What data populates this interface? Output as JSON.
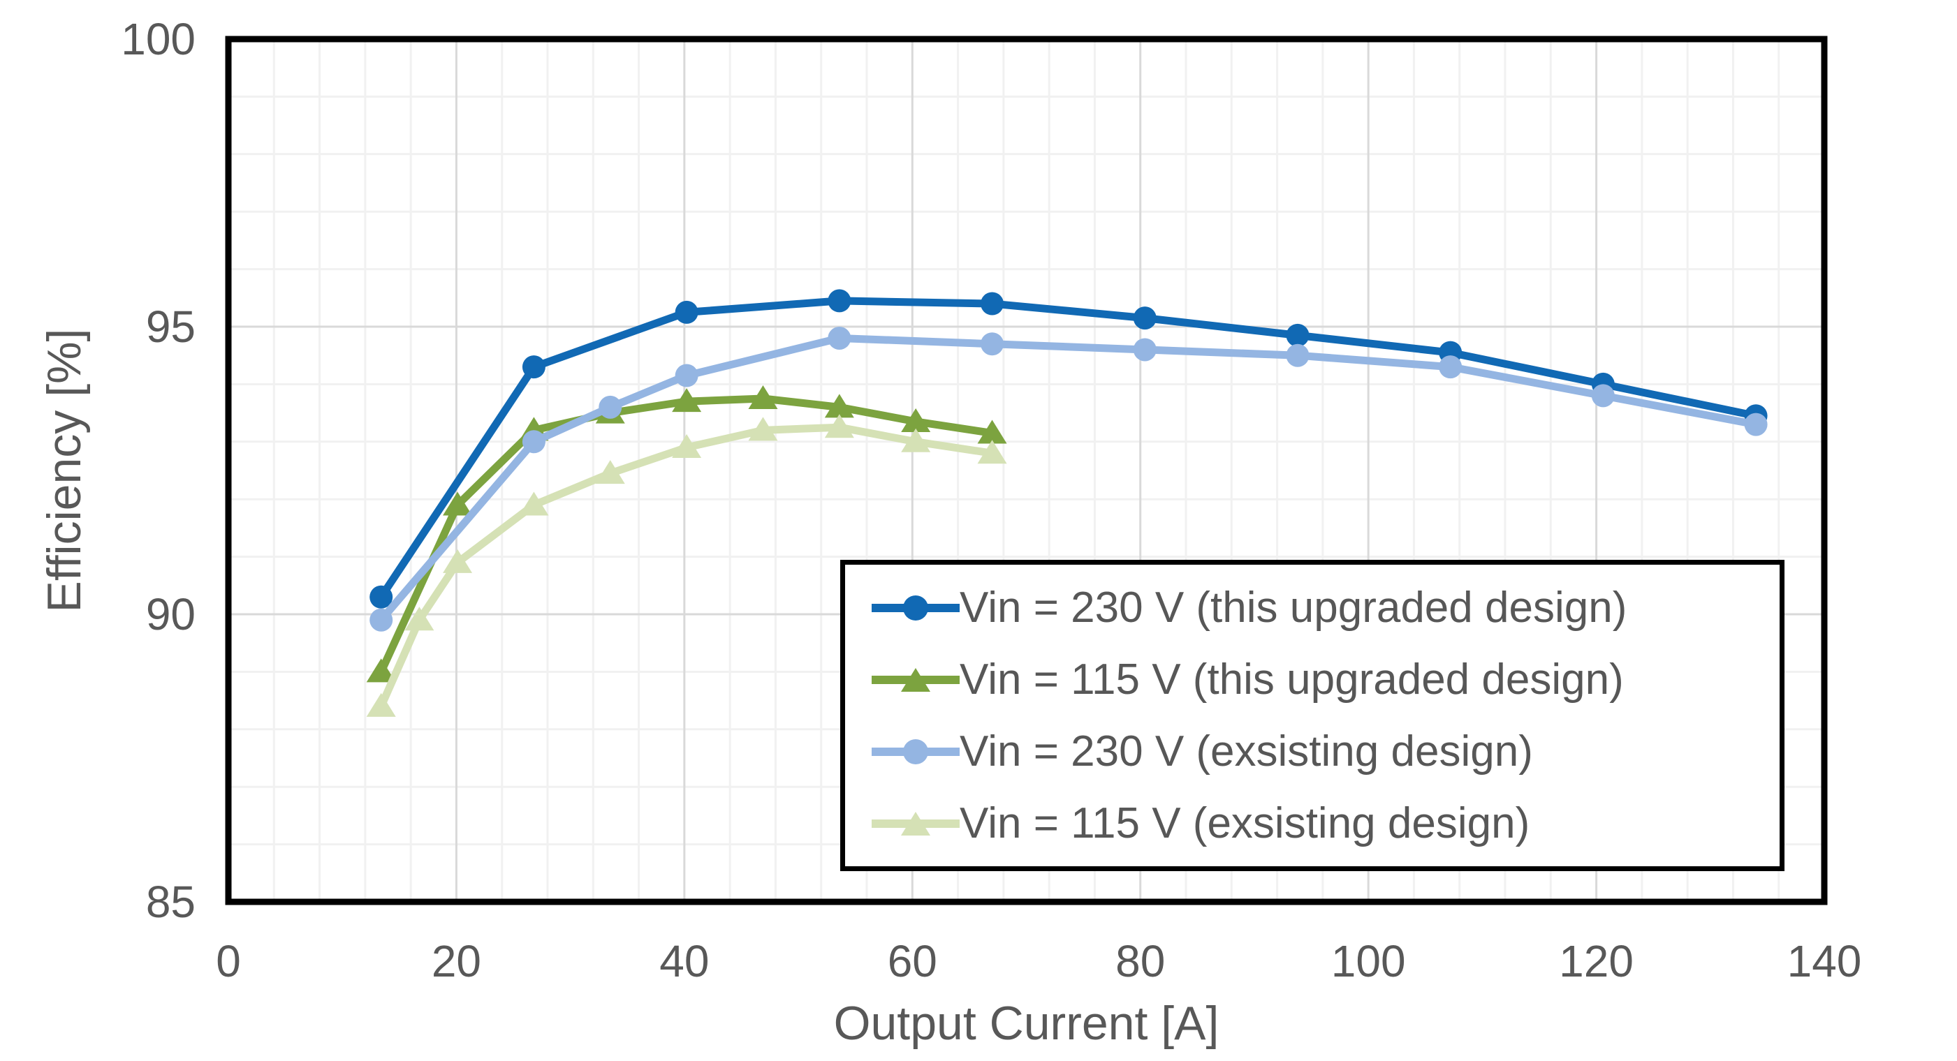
{
  "chart_data": {
    "type": "line",
    "title": "",
    "xlabel": "Output Current [A]",
    "ylabel": "Efficiency [%]",
    "xlim": [
      0,
      140
    ],
    "ylim": [
      85,
      100
    ],
    "x_major_unit": 20,
    "x_minor_unit": 4,
    "y_major_unit": 5,
    "y_minor_unit": 1,
    "x_ticks": [
      0,
      20,
      40,
      60,
      80,
      100,
      120,
      140
    ],
    "y_ticks": [
      85,
      90,
      95,
      100
    ],
    "grid": "major and minor gridlines shown",
    "legend_position": "inside lower right, black framed box",
    "style": {
      "background": "#ffffff",
      "frame_color": "#000000",
      "grid_minor_color": "#f1f1f1",
      "grid_major_color": "#d9d9d9",
      "text_color": "#585858"
    },
    "series": [
      {
        "name": "Vin = 230 V (this upgraded design)",
        "color": "#1169b4",
        "marker": "circle",
        "x": [
          13.4,
          26.8,
          40.2,
          53.6,
          67,
          80.4,
          93.8,
          107.2,
          120.6,
          134
        ],
        "y": [
          90.3,
          94.3,
          95.25,
          95.45,
          95.4,
          95.15,
          94.85,
          94.55,
          94.0,
          93.45
        ]
      },
      {
        "name": "Vin = 115 V (this upgraded design)",
        "color": "#7ca33f",
        "marker": "triangle",
        "x": [
          13.4,
          20.1,
          26.8,
          33.5,
          40.2,
          46.9,
          53.6,
          60.3,
          67
        ],
        "y": [
          89.0,
          91.9,
          93.2,
          93.5,
          93.7,
          93.75,
          93.6,
          93.35,
          93.15
        ]
      },
      {
        "name": "Vin = 230 V (exsisting design)",
        "color": "#94b5e2",
        "marker": "circle",
        "x": [
          13.4,
          26.8,
          33.5,
          40.2,
          53.6,
          67,
          80.4,
          93.8,
          107.2,
          120.6,
          134
        ],
        "y": [
          89.9,
          93.0,
          93.6,
          94.15,
          94.8,
          94.7,
          94.6,
          94.5,
          94.3,
          93.8,
          93.3
        ]
      },
      {
        "name": "Vin = 115 V (exsisting design)",
        "color": "#d5e1b5",
        "marker": "triangle",
        "x": [
          13.4,
          16.75,
          20.1,
          26.8,
          33.5,
          40.2,
          46.9,
          53.6,
          60.3,
          67
        ],
        "y": [
          88.4,
          89.9,
          90.9,
          91.9,
          92.45,
          92.9,
          93.2,
          93.25,
          93.0,
          92.8
        ]
      }
    ]
  }
}
